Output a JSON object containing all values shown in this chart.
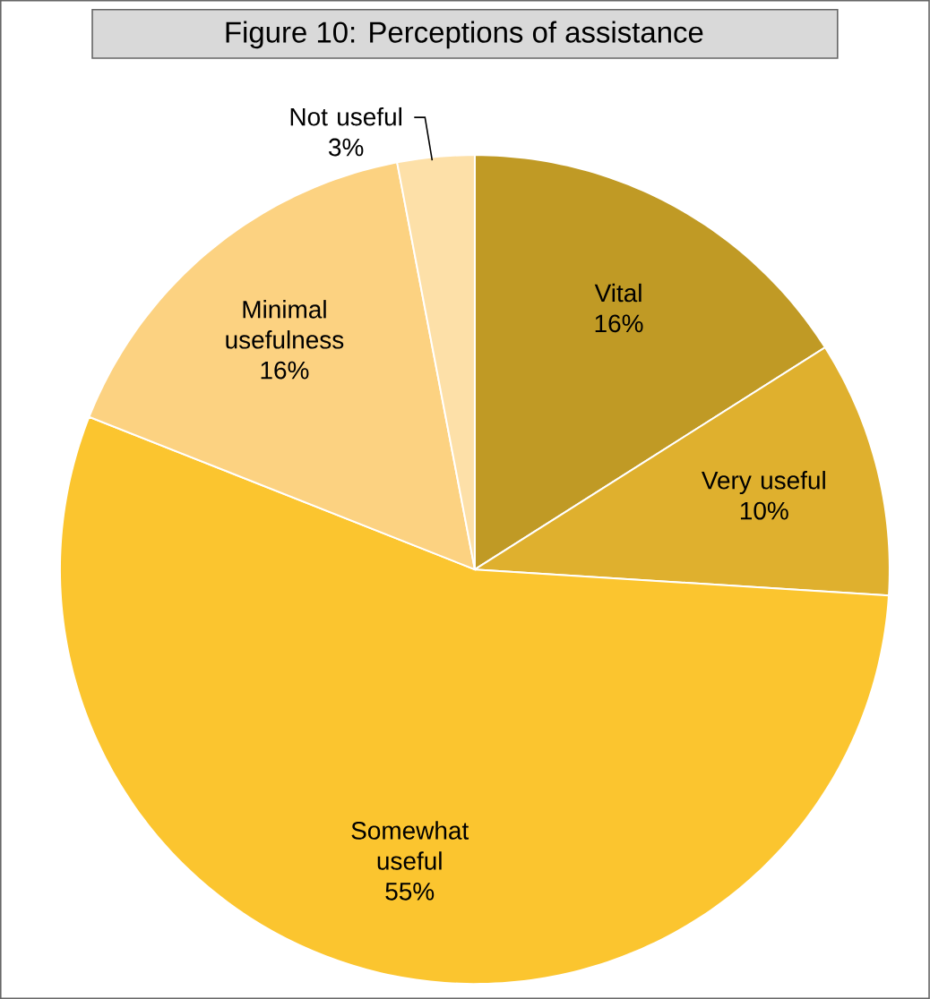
{
  "chart_data": {
    "type": "pie",
    "title": "Figure 10: Perceptions of assistance",
    "categories": [
      "Vital",
      "Very useful",
      "Somewhat useful",
      "Minimal usefulness",
      "Not useful"
    ],
    "values": [
      16,
      10,
      55,
      16,
      3
    ],
    "value_labels": [
      "16%",
      "10%",
      "55%",
      "16%",
      "3%"
    ],
    "colors": [
      "#c09a25",
      "#dfb02e",
      "#fbc52f",
      "#fcd281",
      "#fde0a8"
    ],
    "legend": false
  }
}
